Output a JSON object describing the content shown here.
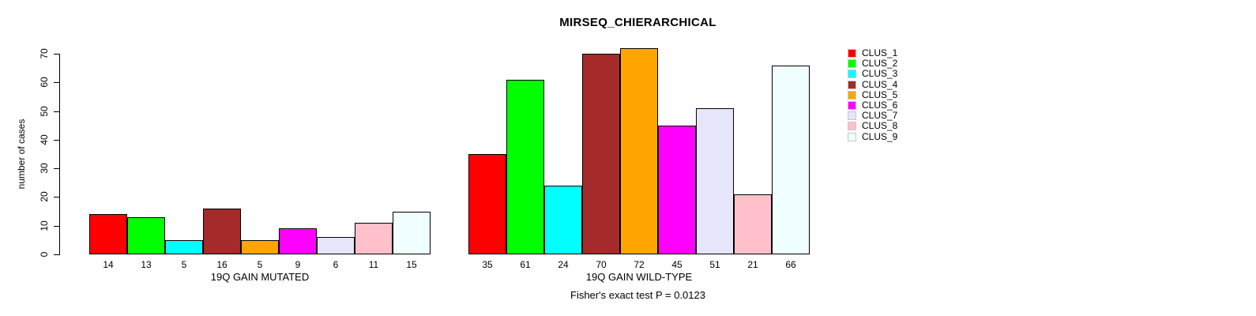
{
  "chart_data": {
    "type": "bar",
    "title": "MIRSEQ_CHIERARCHICAL",
    "ylabel": "number of cases",
    "ylim": [
      0,
      70
    ],
    "yticks": [
      0,
      10,
      20,
      30,
      40,
      50,
      60,
      70
    ],
    "grid": false,
    "legend_position": "right",
    "background_color": "#FFFFFF",
    "bar_border_color": "#000000",
    "groups": [
      {
        "label": "19Q GAIN MUTATED",
        "values": [
          14,
          13,
          5,
          16,
          5,
          9,
          6,
          11,
          15
        ]
      },
      {
        "label": "19Q GAIN WILD-TYPE",
        "values": [
          35,
          61,
          24,
          70,
          72,
          45,
          51,
          21,
          66
        ]
      }
    ],
    "legend": [
      {
        "label": "CLUS_1",
        "color": "#FF0000"
      },
      {
        "label": "CLUS_2",
        "color": "#00FF00"
      },
      {
        "label": "CLUS_3",
        "color": "#00FFFF"
      },
      {
        "label": "CLUS_4",
        "color": "#A52A2A"
      },
      {
        "label": "CLUS_5",
        "color": "#FFA500"
      },
      {
        "label": "CLUS_6",
        "color": "#FF00FF"
      },
      {
        "label": "CLUS_7",
        "color": "#E6E6FA"
      },
      {
        "label": "CLUS_8",
        "color": "#FFC0CB"
      },
      {
        "label": "CLUS_9",
        "color": "#F0FFFF"
      }
    ],
    "annotation": "Fisher's exact test P = 0.0123"
  }
}
